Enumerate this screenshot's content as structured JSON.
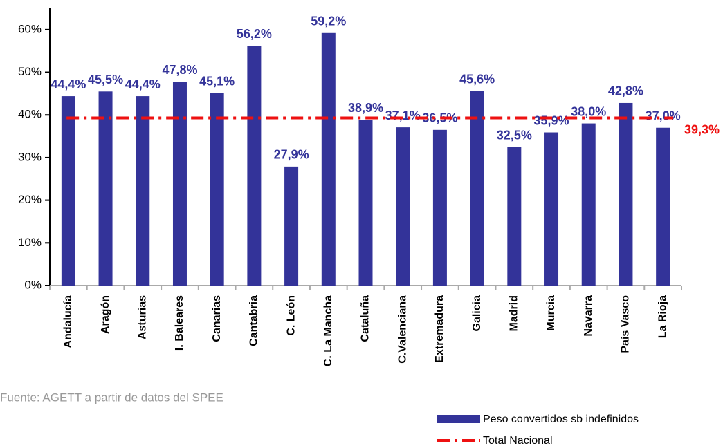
{
  "chart_data": {
    "type": "bar",
    "categories": [
      "Andalucía",
      "Aragón",
      "Asturias",
      "I. Baleares",
      "Canarias",
      "Cantabria",
      "C. León",
      "C. La Mancha",
      "Cataluña",
      "C.Valenciana",
      "Extremadura",
      "Galicia",
      "Madrid",
      "Murcia",
      "Navarra",
      "País Vasco",
      "La Rioja"
    ],
    "series": [
      {
        "name": "Peso convertidos sb indefinidos",
        "color": "#333399",
        "values": [
          44.4,
          45.5,
          44.4,
          47.8,
          45.1,
          56.2,
          27.9,
          59.2,
          38.9,
          37.1,
          36.5,
          45.6,
          32.5,
          35.9,
          38.0,
          42.8,
          37.0
        ],
        "value_labels": [
          "44,4%",
          "45,5%",
          "44,4%",
          "47,8%",
          "45,1%",
          "56,2%",
          "27,9%",
          "59,2%",
          "38,9%",
          "37,1%",
          "36,5%",
          "45,6%",
          "32,5%",
          "35,9%",
          "38,0%",
          "42,8%",
          "37,0%"
        ]
      }
    ],
    "reference": {
      "name": "Total Nacional",
      "value": 39.3,
      "value_label": "39,3%",
      "color": "#ee1111"
    },
    "ylim": [
      0,
      65
    ],
    "yticks": [
      {
        "value": 0,
        "label": "0%"
      },
      {
        "value": 10,
        "label": "10%"
      },
      {
        "value": 20,
        "label": "20%"
      },
      {
        "value": 30,
        "label": "30%"
      },
      {
        "value": 40,
        "label": "40%"
      },
      {
        "value": 50,
        "label": "50%"
      },
      {
        "value": 60,
        "label": "60%"
      }
    ],
    "source": "Fuente: AGETT a partir de datos del SPEE"
  }
}
